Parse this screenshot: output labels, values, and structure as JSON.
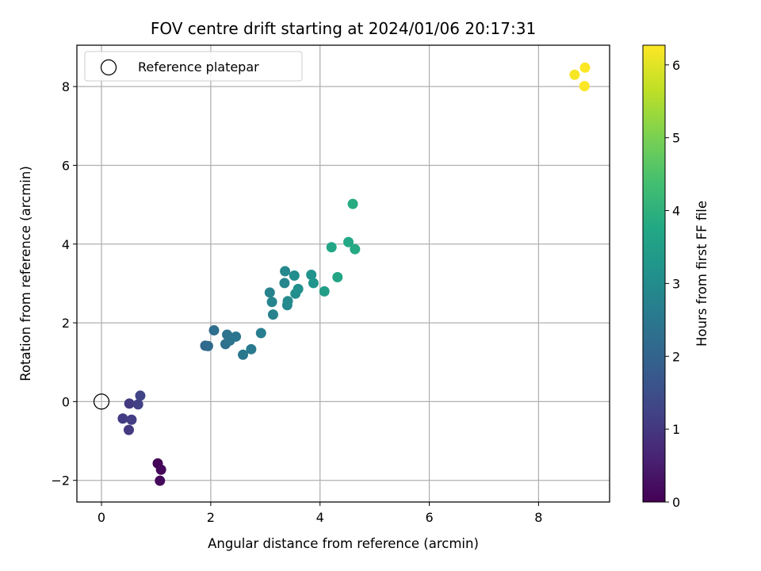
{
  "chart_data": {
    "type": "scatter",
    "title": "FOV centre drift starting at 2024/01/06 20:17:31",
    "xlabel": "Angular distance from reference (arcmin)",
    "ylabel": "Rotation from reference (arcmin)",
    "xlim": [
      -0.45,
      9.3
    ],
    "ylim": [
      -2.55,
      9.05
    ],
    "xticks": [
      0,
      2,
      4,
      6,
      8
    ],
    "yticks": [
      -2,
      0,
      2,
      4,
      6,
      8
    ],
    "xtick_labels": [
      "0",
      "2",
      "4",
      "6",
      "8"
    ],
    "ytick_labels": [
      "−2",
      "0",
      "2",
      "4",
      "6",
      "8"
    ],
    "grid": true,
    "legend": {
      "position": "top-left",
      "label": "Reference platepar"
    },
    "reference_point": {
      "x": 0,
      "y": 0
    },
    "colorbar": {
      "label": "Hours from first FF file",
      "colormap": "viridis",
      "range": [
        0,
        6.27
      ],
      "ticks": [
        0,
        1,
        2,
        3,
        4,
        5,
        6
      ],
      "tick_labels": [
        "0",
        "1",
        "2",
        "3",
        "4",
        "5",
        "6"
      ]
    },
    "points": [
      {
        "x": 1.03,
        "y": -1.57,
        "h": 0.05
      },
      {
        "x": 1.09,
        "y": -1.73,
        "h": 0.1
      },
      {
        "x": 1.07,
        "y": -2.01,
        "h": 0.15
      },
      {
        "x": 0.51,
        "y": -0.05,
        "h": 1.05
      },
      {
        "x": 0.39,
        "y": -0.43,
        "h": 1.1
      },
      {
        "x": 0.55,
        "y": -0.46,
        "h": 1.15
      },
      {
        "x": 0.5,
        "y": -0.72,
        "h": 1.05
      },
      {
        "x": 0.67,
        "y": -0.07,
        "h": 1.2
      },
      {
        "x": 0.71,
        "y": 0.15,
        "h": 1.25
      },
      {
        "x": 1.9,
        "y": 1.42,
        "h": 2.1
      },
      {
        "x": 1.95,
        "y": 1.41,
        "h": 2.15
      },
      {
        "x": 2.06,
        "y": 1.81,
        "h": 2.25
      },
      {
        "x": 2.27,
        "y": 1.46,
        "h": 2.3
      },
      {
        "x": 2.3,
        "y": 1.7,
        "h": 2.35
      },
      {
        "x": 2.35,
        "y": 1.55,
        "h": 2.4
      },
      {
        "x": 2.46,
        "y": 1.65,
        "h": 2.45
      },
      {
        "x": 2.59,
        "y": 1.19,
        "h": 2.5
      },
      {
        "x": 2.74,
        "y": 1.33,
        "h": 2.55
      },
      {
        "x": 2.92,
        "y": 1.74,
        "h": 2.65
      },
      {
        "x": 3.08,
        "y": 2.77,
        "h": 2.75
      },
      {
        "x": 3.12,
        "y": 2.53,
        "h": 2.8
      },
      {
        "x": 3.14,
        "y": 2.21,
        "h": 2.75
      },
      {
        "x": 3.35,
        "y": 3.01,
        "h": 2.85
      },
      {
        "x": 3.36,
        "y": 3.31,
        "h": 2.9
      },
      {
        "x": 3.4,
        "y": 2.45,
        "h": 2.9
      },
      {
        "x": 3.41,
        "y": 2.55,
        "h": 2.95
      },
      {
        "x": 3.53,
        "y": 3.2,
        "h": 3.0
      },
      {
        "x": 3.55,
        "y": 2.74,
        "h": 3.05
      },
      {
        "x": 3.6,
        "y": 2.86,
        "h": 3.1
      },
      {
        "x": 3.84,
        "y": 3.22,
        "h": 3.2
      },
      {
        "x": 3.88,
        "y": 3.01,
        "h": 3.25
      },
      {
        "x": 4.08,
        "y": 2.8,
        "h": 3.5
      },
      {
        "x": 4.21,
        "y": 3.92,
        "h": 3.7
      },
      {
        "x": 4.32,
        "y": 3.16,
        "h": 3.65
      },
      {
        "x": 4.52,
        "y": 4.05,
        "h": 3.75
      },
      {
        "x": 4.6,
        "y": 5.02,
        "h": 3.85
      },
      {
        "x": 4.64,
        "y": 3.87,
        "h": 3.8
      },
      {
        "x": 8.66,
        "y": 8.3,
        "h": 6.2
      },
      {
        "x": 8.85,
        "y": 8.48,
        "h": 6.25
      },
      {
        "x": 8.84,
        "y": 8.01,
        "h": 6.25
      }
    ]
  }
}
